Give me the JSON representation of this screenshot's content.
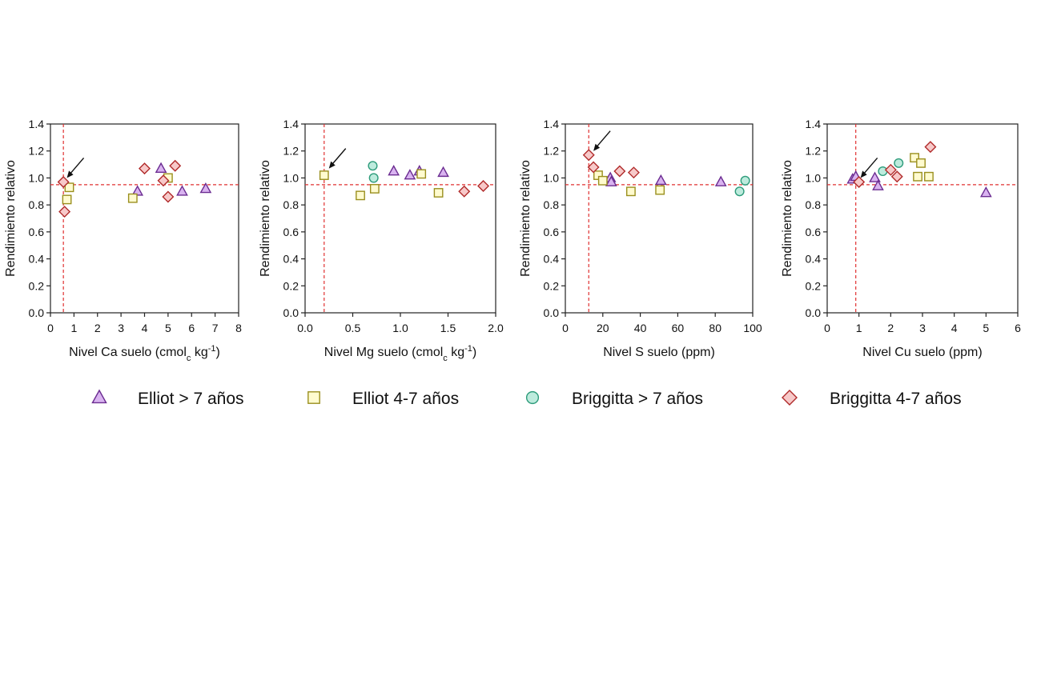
{
  "legend": [
    {
      "name": "Elliot > 7 años",
      "marker": "triangle",
      "fill": "#D9B3F0",
      "stroke": "#6B2C91"
    },
    {
      "name": "Elliot 4-7 años",
      "marker": "square",
      "fill": "#FFFBCF",
      "stroke": "#9A8F1E"
    },
    {
      "name": "Briggitta > 7 años",
      "marker": "circle",
      "fill": "#BDEBDD",
      "stroke": "#2E9C7B"
    },
    {
      "name": "Briggitta 4-7 años",
      "marker": "diamond",
      "fill": "#F7C9C9",
      "stroke": "#B02A2A"
    }
  ],
  "colors": {
    "threshold_line": "#E03030",
    "axis": "#222222"
  },
  "chart_data": [
    {
      "type": "scatter",
      "ylabel": "Rendimiento relativo",
      "xlabel": {
        "main": "Nivel Ca suelo (cmol",
        "sub": "c",
        "tail": " kg",
        "sup": "-1",
        "end": ")"
      },
      "xlim": [
        0,
        8
      ],
      "ylim": [
        0,
        1.4
      ],
      "xticks": [
        "0",
        "1",
        "2",
        "3",
        "4",
        "5",
        "6",
        "7",
        "8"
      ],
      "yticks": [
        "0.0",
        "0.2",
        "0.4",
        "0.6",
        "0.8",
        "1.0",
        "1.2",
        "1.4"
      ],
      "threshold": {
        "x": 0.55,
        "y": 0.95
      },
      "arrow_target": {
        "x": 0.7,
        "y": 1.0
      },
      "series": [
        {
          "name": "Elliot > 7 años",
          "points": [
            [
              3.7,
              0.9
            ],
            [
              4.7,
              1.07
            ],
            [
              5.6,
              0.9
            ],
            [
              6.6,
              0.92
            ]
          ]
        },
        {
          "name": "Elliot 4-7 años",
          "points": [
            [
              0.7,
              0.84
            ],
            [
              0.8,
              0.93
            ],
            [
              3.5,
              0.85
            ],
            [
              5.0,
              1.0
            ]
          ]
        },
        {
          "name": "Briggitta > 7 años",
          "points": []
        },
        {
          "name": "Briggitta 4-7 años",
          "points": [
            [
              0.55,
              0.97
            ],
            [
              0.6,
              0.75
            ],
            [
              4.0,
              1.07
            ],
            [
              4.8,
              0.98
            ],
            [
              5.0,
              0.86
            ],
            [
              5.3,
              1.09
            ]
          ]
        }
      ]
    },
    {
      "type": "scatter",
      "ylabel": "Rendimiento relativo",
      "xlabel": {
        "main": "Nivel Mg suelo (cmol",
        "sub": "c",
        "tail": " kg",
        "sup": "-1",
        "end": ")"
      },
      "xlim": [
        0,
        2
      ],
      "ylim": [
        0,
        1.4
      ],
      "xticks": [
        "0.0",
        "0.5",
        "1.0",
        "1.5",
        "2.0"
      ],
      "yticks": [
        "0.0",
        "0.2",
        "0.4",
        "0.6",
        "0.8",
        "1.0",
        "1.2",
        "1.4"
      ],
      "threshold": {
        "x": 0.2,
        "y": 0.95
      },
      "arrow_target": {
        "x": 0.25,
        "y": 1.07
      },
      "series": [
        {
          "name": "Elliot > 7 años",
          "points": [
            [
              0.93,
              1.05
            ],
            [
              1.1,
              1.02
            ],
            [
              1.2,
              1.05
            ],
            [
              1.45,
              1.04
            ]
          ]
        },
        {
          "name": "Elliot 4-7 años",
          "points": [
            [
              0.2,
              1.02
            ],
            [
              0.58,
              0.87
            ],
            [
              0.73,
              0.92
            ],
            [
              1.22,
              1.03
            ],
            [
              1.4,
              0.89
            ]
          ]
        },
        {
          "name": "Briggitta > 7 años",
          "points": [
            [
              0.71,
              1.09
            ],
            [
              0.72,
              1.0
            ]
          ]
        },
        {
          "name": "Briggitta 4-7 años",
          "points": [
            [
              1.67,
              0.9
            ],
            [
              1.87,
              0.94
            ]
          ]
        }
      ]
    },
    {
      "type": "scatter",
      "ylabel": "Rendimiento relativo",
      "xlabel": {
        "main": "Nivel S suelo (ppm)",
        "sub": "",
        "tail": "",
        "sup": "",
        "end": ""
      },
      "xlim": [
        0,
        100
      ],
      "ylim": [
        0,
        1.4
      ],
      "xticks": [
        "0",
        "20",
        "40",
        "60",
        "80",
        "100"
      ],
      "yticks": [
        "0.0",
        "0.2",
        "0.4",
        "0.6",
        "0.8",
        "1.0",
        "1.2",
        "1.4"
      ],
      "threshold": {
        "x": 12.5,
        "y": 0.95
      },
      "arrow_target": {
        "x": 15,
        "y": 1.2
      },
      "series": [
        {
          "name": "Elliot > 7 años",
          "points": [
            [
              24,
              1.0
            ],
            [
              24.5,
              0.97
            ],
            [
              51,
              0.98
            ],
            [
              83,
              0.97
            ]
          ]
        },
        {
          "name": "Elliot 4-7 años",
          "points": [
            [
              17.5,
              1.02
            ],
            [
              20,
              0.98
            ],
            [
              35,
              0.9
            ],
            [
              50.5,
              0.91
            ]
          ]
        },
        {
          "name": "Briggitta > 7 años",
          "points": [
            [
              93,
              0.9
            ],
            [
              96,
              0.98
            ]
          ]
        },
        {
          "name": "Briggitta 4-7 años",
          "points": [
            [
              12.5,
              1.17
            ],
            [
              15,
              1.08
            ],
            [
              29,
              1.05
            ],
            [
              36.5,
              1.04
            ]
          ]
        }
      ]
    },
    {
      "type": "scatter",
      "ylabel": "Rendimiento relativo",
      "xlabel": {
        "main": "Nivel Cu suelo (ppm)",
        "sub": "",
        "tail": "",
        "sup": "",
        "end": ""
      },
      "xlim": [
        0,
        6
      ],
      "ylim": [
        0,
        1.4
      ],
      "xticks": [
        "0",
        "1",
        "2",
        "3",
        "4",
        "5",
        "6"
      ],
      "yticks": [
        "0.0",
        "0.2",
        "0.4",
        "0.6",
        "0.8",
        "1.0",
        "1.2",
        "1.4"
      ],
      "threshold": {
        "x": 0.9,
        "y": 0.95
      },
      "arrow_target": {
        "x": 1.05,
        "y": 1.0
      },
      "series": [
        {
          "name": "Elliot > 7 años",
          "points": [
            [
              0.8,
              0.99
            ],
            [
              0.9,
              1.01
            ],
            [
              1.5,
              1.0
            ],
            [
              1.6,
              0.94
            ],
            [
              5.0,
              0.89
            ]
          ]
        },
        {
          "name": "Elliot 4-7 años",
          "points": [
            [
              2.75,
              1.15
            ],
            [
              2.85,
              1.01
            ],
            [
              2.95,
              1.11
            ],
            [
              3.2,
              1.01
            ]
          ]
        },
        {
          "name": "Briggitta > 7 años",
          "points": [
            [
              1.75,
              1.05
            ],
            [
              2.25,
              1.11
            ]
          ]
        },
        {
          "name": "Briggitta 4-7 años",
          "points": [
            [
              1.0,
              0.97
            ],
            [
              2.0,
              1.06
            ],
            [
              2.2,
              1.01
            ],
            [
              3.25,
              1.23
            ]
          ]
        }
      ]
    }
  ]
}
